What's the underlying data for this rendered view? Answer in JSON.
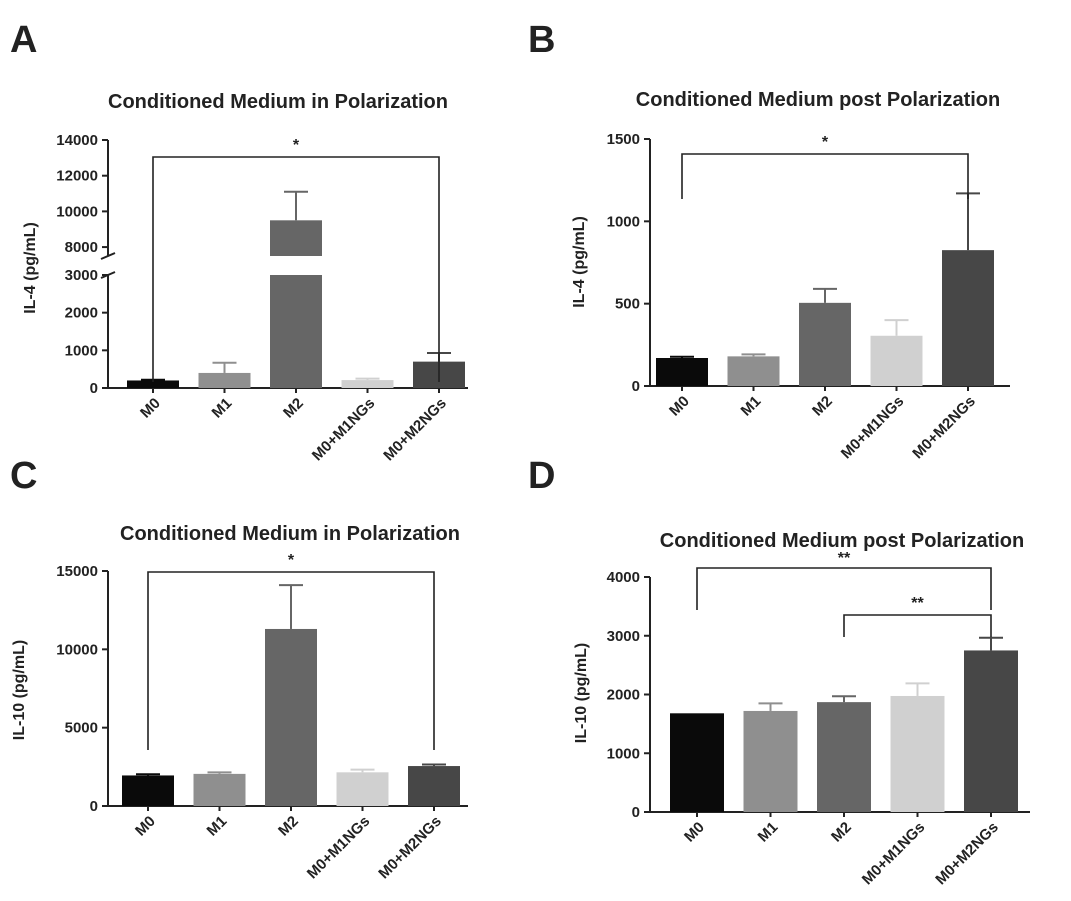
{
  "figure": {
    "panel_letters": [
      "A",
      "B",
      "C",
      "D"
    ]
  },
  "chart_data": [
    {
      "panel": "A",
      "type": "bar",
      "title": "Conditioned Medium in Polarization",
      "xlabel": "",
      "ylabel": "IL-4 (pg/mL)",
      "categories": [
        "M0",
        "M1",
        "M2",
        "M0+M1NGs",
        "M0+M2NGs"
      ],
      "values": [
        200,
        400,
        9500,
        210,
        700
      ],
      "errors": [
        20,
        270,
        1600,
        40,
        230
      ],
      "colors": [
        "#0a0a0a",
        "#8f8f8f",
        "#666666",
        "#d0d0d0",
        "#474747"
      ],
      "axis_break": true,
      "ylim_lower": [
        0,
        3000
      ],
      "ylim_upper": [
        7500,
        14000
      ],
      "yticks_lower": [
        "0",
        "1000",
        "2000",
        "3000"
      ],
      "yticks_upper": [
        "8000",
        "10000",
        "12000",
        "14000"
      ],
      "grid": false,
      "significance": [
        {
          "from": "M0",
          "to": "M0+M2NGs",
          "label": "*"
        }
      ]
    },
    {
      "panel": "B",
      "type": "bar",
      "title": "Conditioned Medium post Polarization",
      "xlabel": "",
      "ylabel": "IL-4 (pg/mL)",
      "categories": [
        "M0",
        "M1",
        "M2",
        "M0+M1NGs",
        "M0+M2NGs"
      ],
      "values": [
        170,
        180,
        505,
        305,
        825
      ],
      "errors": [
        8,
        12,
        85,
        95,
        345
      ],
      "colors": [
        "#0a0a0a",
        "#8f8f8f",
        "#666666",
        "#d0d0d0",
        "#474747"
      ],
      "ylim": [
        0,
        1500
      ],
      "yticks": [
        "0",
        "500",
        "1000",
        "1500"
      ],
      "grid": false,
      "significance": [
        {
          "from": "M0",
          "to": "M0+M2NGs",
          "label": "*"
        }
      ]
    },
    {
      "panel": "C",
      "type": "bar",
      "title": "Conditioned Medium in Polarization",
      "xlabel": "",
      "ylabel": "IL-10 (pg/mL)",
      "categories": [
        "M0",
        "M1",
        "M2",
        "M0+M1NGs",
        "M0+M2NGs"
      ],
      "values": [
        1950,
        2050,
        11300,
        2150,
        2550
      ],
      "errors": [
        80,
        100,
        2800,
        170,
        100
      ],
      "colors": [
        "#0a0a0a",
        "#8f8f8f",
        "#666666",
        "#d0d0d0",
        "#474747"
      ],
      "ylim": [
        0,
        15000
      ],
      "yticks": [
        "0",
        "5000",
        "10000",
        "15000"
      ],
      "grid": false,
      "significance": [
        {
          "from": "M0",
          "to": "M0+M2NGs",
          "label": "*"
        }
      ]
    },
    {
      "panel": "D",
      "type": "bar",
      "title": "Conditioned Medium post Polarization",
      "xlabel": "",
      "ylabel": "IL-10 (pg/mL)",
      "categories": [
        "M0",
        "M1",
        "M2",
        "M0+M1NGs",
        "M0+M2NGs"
      ],
      "values": [
        1680,
        1720,
        1870,
        1975,
        2750
      ],
      "errors": [
        0,
        130,
        100,
        215,
        215
      ],
      "colors": [
        "#0a0a0a",
        "#8f8f8f",
        "#666666",
        "#d0d0d0",
        "#474747"
      ],
      "ylim": [
        0,
        4000
      ],
      "yticks": [
        "0",
        "1000",
        "2000",
        "3000",
        "4000"
      ],
      "grid": false,
      "significance": [
        {
          "from": "M0",
          "to": "M0+M2NGs",
          "label": "**"
        },
        {
          "from": "M2",
          "to": "M0+M2NGs",
          "label": "**"
        }
      ]
    }
  ]
}
